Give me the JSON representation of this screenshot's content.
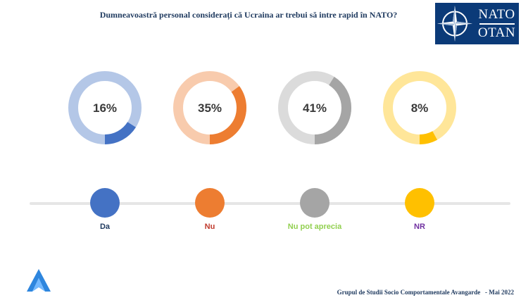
{
  "title": "Dumneavoastră personal considerați că Ucraina ar trebui să intre rapid în NATO?",
  "logo": {
    "line1": "NATO",
    "line2": "OTAN",
    "icon": "nato-compass-star-icon"
  },
  "chart_data": {
    "type": "pie",
    "title": "Dumneavoastră personal considerați că Ucraina ar trebui să intre rapid în NATO?",
    "categories": [
      "Da",
      "Nu",
      "Nu pot aprecia",
      "NR"
    ],
    "values": [
      16,
      35,
      41,
      8
    ],
    "value_labels": [
      "16%",
      "35%",
      "41%",
      "8%"
    ],
    "colors": [
      "#4472c4",
      "#ed7d31",
      "#a5a5a5",
      "#ffc000"
    ],
    "track_colors": [
      "#b4c7e7",
      "#f8cbad",
      "#dbdbdb",
      "#ffe699"
    ],
    "label_colors": [
      "#1f3a5f",
      "#c0392b",
      "#92d050",
      "#7030a0"
    ],
    "legend_position": "bottom"
  },
  "footer": {
    "source": "Grupul de Studii Socio Comportamentale Avangarde",
    "date": "- Mai 2022"
  }
}
